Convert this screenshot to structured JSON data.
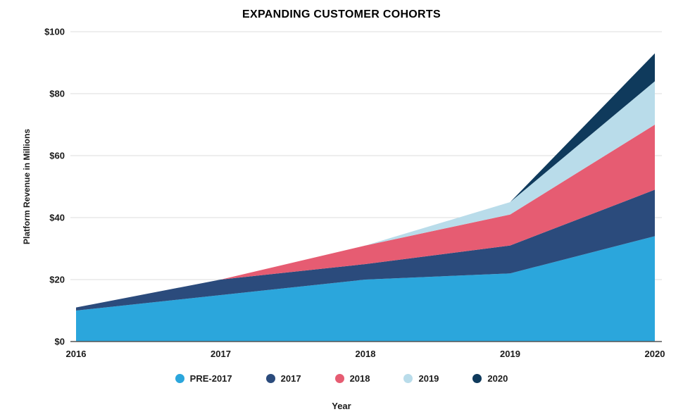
{
  "chart_data": {
    "type": "area",
    "stacked": true,
    "title": "EXPANDING CUSTOMER COHORTS",
    "xlabel": "Year",
    "ylabel": "Platform Revenue in Millions",
    "x": [
      2016,
      2017,
      2018,
      2019,
      2020
    ],
    "x_tick_labels": [
      "2016",
      "2017",
      "2018",
      "2019",
      "2020"
    ],
    "y_ticks": [
      0,
      20,
      40,
      60,
      80,
      100
    ],
    "y_tick_labels": [
      "$0",
      "$20",
      "$40",
      "$60",
      "$80",
      "$100"
    ],
    "ylim": [
      0,
      100
    ],
    "grid": "horizontal",
    "legend_position": "bottom",
    "series": [
      {
        "name": "PRE-2017",
        "color": "#2BA6DC",
        "values": [
          10,
          15,
          20,
          22,
          34
        ]
      },
      {
        "name": "2017",
        "color": "#2B4B7C",
        "values": [
          1,
          5,
          5,
          9,
          15
        ]
      },
      {
        "name": "2018",
        "color": "#E65C72",
        "values": [
          0,
          0,
          6,
          10,
          21
        ]
      },
      {
        "name": "2019",
        "color": "#B9DCEA",
        "values": [
          0,
          0,
          0,
          4,
          14
        ]
      },
      {
        "name": "2020",
        "color": "#0F3A5C",
        "values": [
          0,
          0,
          0,
          0,
          9
        ]
      }
    ],
    "totals_by_year": [
      11,
      20,
      31,
      45,
      93
    ],
    "colors": {
      "grid": "#DCDCDC",
      "axis": "#555555",
      "text": "#1a1a1a"
    }
  }
}
